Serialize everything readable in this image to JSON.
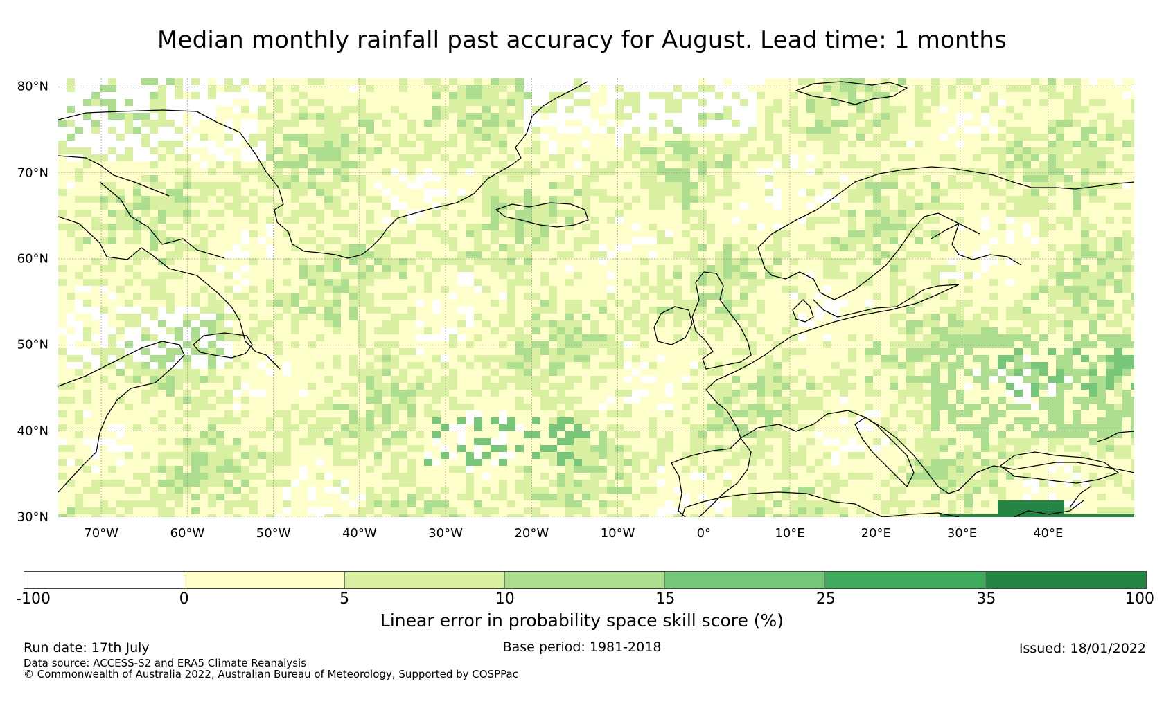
{
  "title": "Median monthly rainfall past accuracy for August. Lead time: 1 months",
  "map": {
    "region": "North Atlantic and Europe",
    "lon_range": [
      -75,
      50
    ],
    "lat_range": [
      30,
      81
    ],
    "lat_labels": [
      "80°N",
      "70°N",
      "60°N",
      "50°N",
      "40°N",
      "30°N"
    ],
    "lat_values": [
      80,
      70,
      60,
      50,
      40,
      30
    ],
    "lon_labels": [
      "70°W",
      "60°W",
      "50°W",
      "40°W",
      "30°W",
      "20°W",
      "10°W",
      "0°",
      "10°E",
      "20°E",
      "30°E",
      "40°E"
    ],
    "lon_values": [
      -70,
      -60,
      -50,
      -40,
      -30,
      -20,
      -10,
      0,
      10,
      20,
      30,
      40
    ],
    "gridlines": true,
    "coastline_color": "#000000"
  },
  "colorbar": {
    "boundaries": [
      "-100",
      "0",
      "5",
      "10",
      "15",
      "25",
      "35",
      "100"
    ],
    "colors": [
      "#ffffff",
      "#ffffcc",
      "#d9f0a3",
      "#addd8e",
      "#78c679",
      "#41ab5d",
      "#238443"
    ],
    "label": "Linear error in probability space skill score (%)"
  },
  "footer": {
    "run_date": "Run date: 17th July",
    "base_period": "Base period: 1981-2018",
    "issued": "Issued: 18/01/2022",
    "data_source": "Data source: ACCESS-S2 and ERA5 Climate Reanalysis",
    "copyright": "© Commonwealth of Australia 2022, Australian Bureau of Meteorology, Supported by COSPPac"
  }
}
